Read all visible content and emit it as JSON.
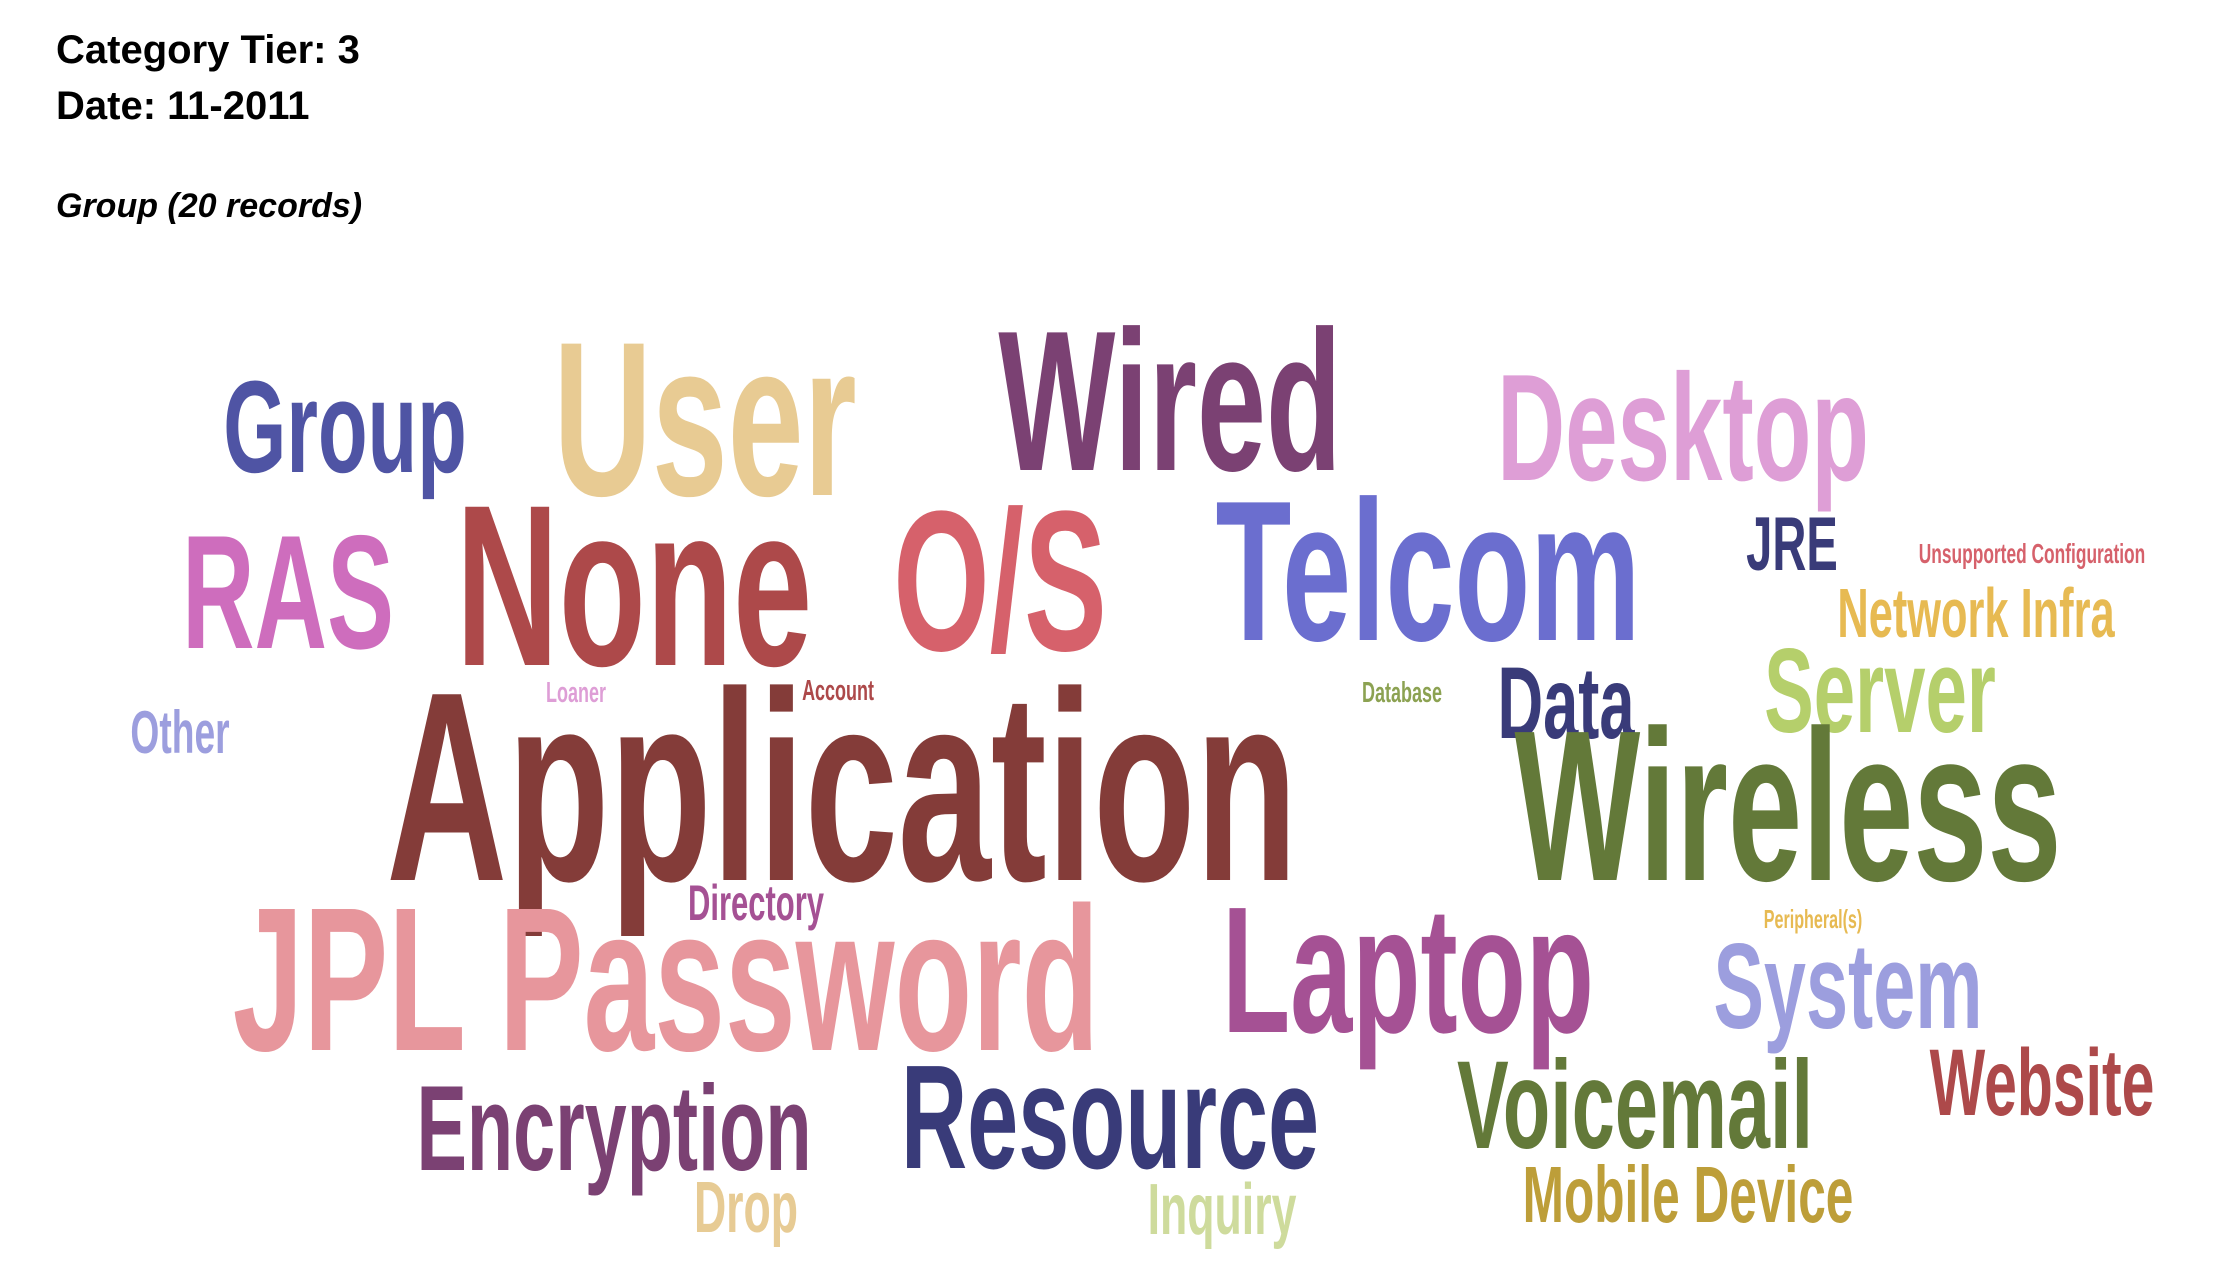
{
  "header": {
    "category_tier": "Category Tier: 3",
    "date": "Date: 11-2011",
    "group_info": "Group (20 records)"
  },
  "words": [
    {
      "text": "Group",
      "color": "#4f54a4"
    },
    {
      "text": "User",
      "color": "#e8cb93"
    },
    {
      "text": "Wired",
      "color": "#7b4173"
    },
    {
      "text": "Desktop",
      "color": "#de9ed6"
    },
    {
      "text": "RAS",
      "color": "#ce6dbd"
    },
    {
      "text": "None",
      "color": "#ad494a"
    },
    {
      "text": "O/S",
      "color": "#d6616b"
    },
    {
      "text": "Telcom",
      "color": "#6b6ecf"
    },
    {
      "text": "JRE",
      "color": "#393b79"
    },
    {
      "text": "Unsupported Configuration",
      "color": "#d6616b"
    },
    {
      "text": "Network Infra",
      "color": "#e7ba52"
    },
    {
      "text": "Loaner",
      "color": "#de9ed6"
    },
    {
      "text": "Account",
      "color": "#ad494a"
    },
    {
      "text": "Database",
      "color": "#8ca252"
    },
    {
      "text": "Data",
      "color": "#393b79"
    },
    {
      "text": "Server",
      "color": "#b5cf6b"
    },
    {
      "text": "Other",
      "color": "#9c9ede"
    },
    {
      "text": "Application",
      "color": "#843c39"
    },
    {
      "text": "Wireless",
      "color": "#637939"
    },
    {
      "text": "Directory",
      "color": "#a55194"
    },
    {
      "text": "Peripheral(s)",
      "color": "#e7ba52"
    },
    {
      "text": "JPL Password",
      "color": "#e7969c"
    },
    {
      "text": "Laptop",
      "color": "#a55194"
    },
    {
      "text": "System",
      "color": "#9c9ede"
    },
    {
      "text": "Encryption",
      "color": "#7b4173"
    },
    {
      "text": "Resource",
      "color": "#393b79"
    },
    {
      "text": "Voicemail",
      "color": "#637939"
    },
    {
      "text": "Website",
      "color": "#ad494a"
    },
    {
      "text": "Drop",
      "color": "#e7cb94"
    },
    {
      "text": "Inquiry",
      "color": "#cedb9c"
    },
    {
      "text": "Mobile Device",
      "color": "#bd9e39"
    }
  ]
}
